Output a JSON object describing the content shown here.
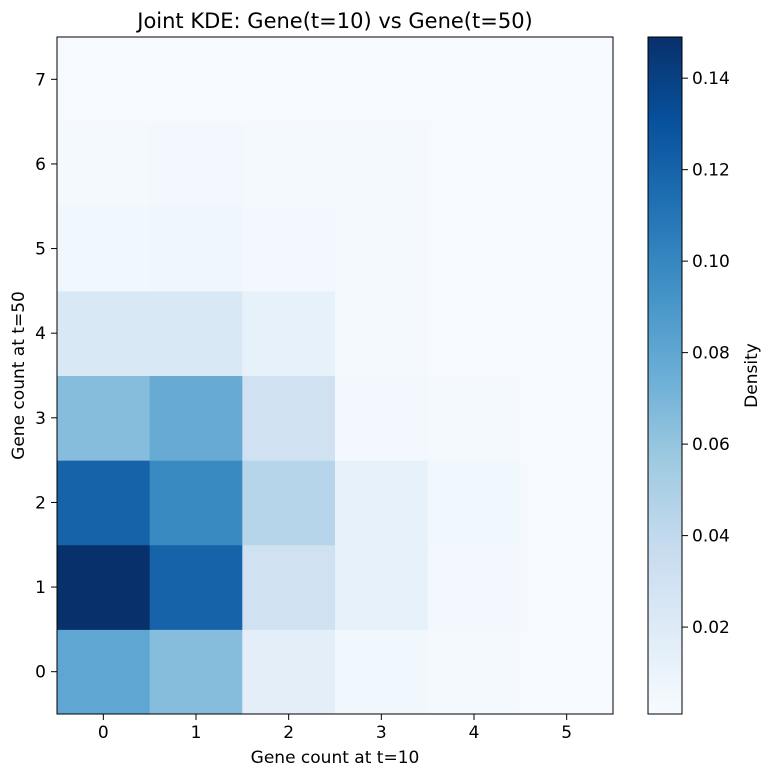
{
  "chart_data": {
    "type": "heatmap",
    "title": "Joint KDE: Gene(t=10) vs Gene(t=50)",
    "xlabel": "Gene count at t=10",
    "ylabel": "Gene count at t=50",
    "x": [
      0,
      1,
      2,
      3,
      4,
      5
    ],
    "y": [
      0,
      1,
      2,
      3,
      4,
      5,
      6,
      7
    ],
    "values_by_y": [
      [
        0.08,
        0.065,
        0.016,
        0.006,
        0.003,
        0.002
      ],
      [
        0.149,
        0.12,
        0.03,
        0.013,
        0.005,
        0.002
      ],
      [
        0.12,
        0.098,
        0.045,
        0.013,
        0.006,
        0.002
      ],
      [
        0.065,
        0.077,
        0.03,
        0.005,
        0.003,
        0.002
      ],
      [
        0.023,
        0.023,
        0.013,
        0.003,
        0.002,
        0.002
      ],
      [
        0.006,
        0.007,
        0.004,
        0.003,
        0.002,
        0.002
      ],
      [
        0.003,
        0.005,
        0.003,
        0.003,
        0.002,
        0.002
      ],
      [
        0.002,
        0.002,
        0.002,
        0.002,
        0.002,
        0.002
      ]
    ],
    "colormap": "Blues",
    "colorbar": {
      "label": "Density",
      "range": [
        0.001,
        0.149
      ],
      "ticks": [
        0.02,
        0.04,
        0.06,
        0.08,
        0.1,
        0.12,
        0.14
      ],
      "tick_labels": [
        "0.02",
        "0.04",
        "0.06",
        "0.08",
        "0.10",
        "0.12",
        "0.14"
      ]
    },
    "xlim": [
      -0.5,
      5.5
    ],
    "ylim": [
      -0.5,
      7.5
    ],
    "grid": false
  }
}
